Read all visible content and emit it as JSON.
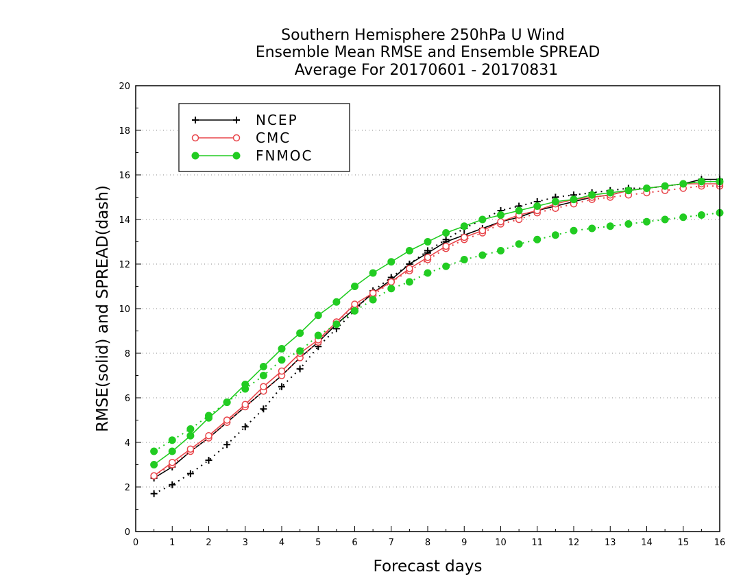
{
  "chart_data": {
    "type": "line",
    "title": [
      "Southern Hemisphere 250hPa U Wind",
      "Ensemble Mean RMSE and Ensemble SPREAD",
      "Average For 20170601 - 20170831"
    ],
    "xlabel": "Forecast days",
    "ylabel": "RMSE(solid) and SPREAD(dash)",
    "xlim": [
      0,
      16
    ],
    "ylim": [
      0,
      20
    ],
    "xticks": [
      "0",
      "1",
      "2",
      "3",
      "4",
      "5",
      "6",
      "7",
      "8",
      "9",
      "10",
      "11",
      "12",
      "13",
      "14",
      "15",
      "16"
    ],
    "yticks": [
      "0",
      "2",
      "4",
      "6",
      "8",
      "10",
      "12",
      "14",
      "16",
      "18",
      "20"
    ],
    "grid": "horizontal dotted",
    "legend_position": "top-left",
    "x": [
      0.5,
      1,
      1.5,
      2,
      2.5,
      3,
      3.5,
      4,
      4.5,
      5,
      5.5,
      6,
      6.5,
      7,
      7.5,
      8,
      8.5,
      9,
      9.5,
      10,
      10.5,
      11,
      11.5,
      12,
      12.5,
      13,
      13.5,
      14,
      14.5,
      15,
      15.5,
      16
    ],
    "series": [
      {
        "name": "NCEP",
        "color": "#000000",
        "marker": "plus",
        "rmse": [
          2.4,
          2.9,
          3.6,
          4.2,
          4.9,
          5.6,
          6.3,
          7.0,
          7.8,
          8.5,
          9.3,
          10.0,
          10.7,
          11.3,
          12.0,
          12.5,
          13.0,
          13.3,
          13.6,
          13.9,
          14.1,
          14.4,
          14.6,
          14.8,
          15.0,
          15.1,
          15.3,
          15.4,
          15.5,
          15.6,
          15.8,
          15.8
        ],
        "spread": [
          1.7,
          2.1,
          2.6,
          3.2,
          3.9,
          4.7,
          5.5,
          6.5,
          7.3,
          8.3,
          9.1,
          9.9,
          10.8,
          11.4,
          12.0,
          12.6,
          13.1,
          13.6,
          14.0,
          14.4,
          14.6,
          14.8,
          15.0,
          15.1,
          15.2,
          15.3,
          15.4,
          15.4,
          15.5,
          15.6,
          15.7,
          15.7
        ]
      },
      {
        "name": "CMC",
        "color": "#e8454a",
        "marker": "open-circle",
        "rmse": [
          2.5,
          3.1,
          3.7,
          4.3,
          5.0,
          5.7,
          6.5,
          7.2,
          8.0,
          8.6,
          9.4,
          10.2,
          10.7,
          11.2,
          11.8,
          12.3,
          12.8,
          13.2,
          13.5,
          13.9,
          14.2,
          14.4,
          14.7,
          14.9,
          15.0,
          15.1,
          15.3,
          15.4,
          15.5,
          15.6,
          15.6,
          15.6
        ],
        "spread": [
          2.5,
          3.0,
          3.6,
          4.2,
          4.9,
          5.6,
          6.3,
          7.0,
          7.8,
          8.5,
          9.4,
          10.1,
          10.6,
          11.2,
          11.7,
          12.2,
          12.7,
          13.1,
          13.4,
          13.8,
          14.0,
          14.3,
          14.5,
          14.7,
          14.9,
          15.0,
          15.1,
          15.2,
          15.3,
          15.4,
          15.5,
          15.5
        ]
      },
      {
        "name": "FNMOC",
        "color": "#22cc22",
        "marker": "filled-circle",
        "rmse": [
          3.0,
          3.6,
          4.3,
          5.1,
          5.8,
          6.6,
          7.4,
          8.2,
          8.9,
          9.7,
          10.3,
          11.0,
          11.6,
          12.1,
          12.6,
          13.0,
          13.4,
          13.7,
          14.0,
          14.2,
          14.4,
          14.6,
          14.8,
          14.9,
          15.1,
          15.2,
          15.3,
          15.4,
          15.5,
          15.6,
          15.7,
          15.7
        ],
        "spread": [
          3.6,
          4.1,
          4.6,
          5.2,
          5.8,
          6.4,
          7.0,
          7.7,
          8.1,
          8.8,
          9.3,
          9.9,
          10.4,
          10.9,
          11.2,
          11.6,
          11.9,
          12.2,
          12.4,
          12.6,
          12.9,
          13.1,
          13.3,
          13.5,
          13.6,
          13.7,
          13.8,
          13.9,
          14.0,
          14.1,
          14.2,
          14.3
        ]
      }
    ]
  }
}
